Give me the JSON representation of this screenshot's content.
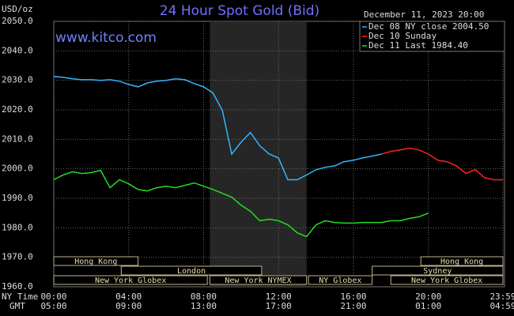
{
  "chart_data": {
    "type": "line",
    "title": "24 Hour Spot Gold (Bid)",
    "y_unit": "USD/oz",
    "timestamp": "December 11, 2023 20:00",
    "watermark": "www.kitco.com",
    "x_row_title": "NY Time",
    "x2_row_title": "GMT",
    "x": [
      0,
      0.5,
      1,
      1.5,
      2,
      2.5,
      3,
      3.5,
      4,
      4.5,
      5,
      5.5,
      6,
      6.5,
      7,
      7.5,
      8,
      8.5,
      9,
      9.5,
      10,
      10.5,
      11,
      11.5,
      12,
      12.5,
      13,
      13.5,
      14,
      14.5,
      15,
      15.5,
      16,
      16.5,
      17,
      17.5,
      18,
      18.5,
      19,
      19.5,
      20,
      20.5,
      21,
      21.5,
      22,
      22.5,
      23,
      23.5,
      23.983
    ],
    "series": [
      {
        "name": "Dec 08 NY close 2004.50",
        "color": "#33b5ff",
        "values": [
          2031.3,
          2031,
          2030.5,
          2030.2,
          2030.2,
          2030,
          2030.2,
          2029.7,
          2028.6,
          2027.8,
          2029.1,
          2029.7,
          2030,
          2030.5,
          2030.2,
          2028.9,
          2027.8,
          2025.7,
          2019.8,
          2005,
          2009,
          2012.3,
          2007.8,
          2005,
          2003.7,
          1996.3,
          1996.3,
          1997.9,
          1999.7,
          2000.5,
          2001,
          2002.4,
          2002.9,
          2003.7,
          2004.3,
          2005,
          null,
          null,
          null,
          null,
          null,
          null,
          null,
          null,
          null,
          null,
          null,
          null,
          null
        ]
      },
      {
        "name": "Dec 10 Sunday",
        "color": "#ff2020",
        "values": [
          null,
          null,
          null,
          null,
          null,
          null,
          null,
          null,
          null,
          null,
          null,
          null,
          null,
          null,
          null,
          null,
          null,
          null,
          null,
          null,
          null,
          null,
          null,
          null,
          null,
          null,
          null,
          null,
          null,
          null,
          null,
          null,
          null,
          null,
          null,
          2005,
          2005.9,
          2006.4,
          2007,
          2006.4,
          2005,
          2002.9,
          2002.4,
          2001,
          1998.4,
          1999.7,
          1997,
          1996.3,
          1996.3
        ]
      },
      {
        "name": "Dec 11 Last 1984.40",
        "color": "#22dd22",
        "values": [
          1996.3,
          1997.9,
          1999,
          1998.4,
          1998.7,
          1999.5,
          1993.6,
          1996.3,
          1994.9,
          1993,
          1992.5,
          1993.6,
          1994.1,
          1993.6,
          1994.4,
          1995.2,
          1994.1,
          1993,
          1991.7,
          1990.4,
          1987.7,
          1985.6,
          1982.4,
          1982.9,
          1982.4,
          1981,
          1978.3,
          1977,
          1981,
          1982.4,
          1981.8,
          1981.6,
          1981.6,
          1981.8,
          1981.8,
          1981.8,
          1982.4,
          1982.4,
          1983.2,
          1983.7,
          1985,
          null,
          null,
          null,
          null,
          null,
          null,
          null,
          null
        ]
      }
    ],
    "xlim": [
      0,
      23.983
    ],
    "xticks": [
      {
        "value": 0,
        "label": "00:00"
      },
      {
        "value": 4,
        "label": "04:00"
      },
      {
        "value": 8,
        "label": "08:00"
      },
      {
        "value": 12,
        "label": "12:00"
      },
      {
        "value": 16,
        "label": "16:00"
      },
      {
        "value": 20,
        "label": "20:00"
      },
      {
        "value": 23.983,
        "label": "23:59"
      }
    ],
    "x2_labels": [
      "05:00",
      "09:00",
      "13:00",
      "17:00",
      "21:00",
      "01:00",
      "04:59"
    ],
    "ylim": [
      1960,
      2050
    ],
    "yticks": [
      {
        "value": 1960,
        "label": "1960.0"
      },
      {
        "value": 1970,
        "label": "1970.0"
      },
      {
        "value": 1980,
        "label": "1980.0"
      },
      {
        "value": 1990,
        "label": "1990.0"
      },
      {
        "value": 2000,
        "label": "2000.0"
      },
      {
        "value": 2010,
        "label": "2010.0"
      },
      {
        "value": 2020,
        "label": "2020.0"
      },
      {
        "value": 2030,
        "label": "2030.0"
      },
      {
        "value": 2040,
        "label": "2040.0"
      },
      {
        "value": 2050,
        "label": "2050.0"
      }
    ],
    "grid": true,
    "legend": "top-right",
    "shaded_session": "New York NYMEX",
    "sessions": [
      [
        {
          "label": "Hong Kong",
          "start": 0,
          "end": 4.5
        },
        {
          "label": "Hong Kong",
          "start": 19.6,
          "end": 23.983
        }
      ],
      [
        {
          "label": "London",
          "start": 3.6,
          "end": 11.1
        },
        {
          "label": "Sydney",
          "start": 17,
          "end": 23.983
        }
      ],
      [
        {
          "label": "New York Globex",
          "start": 0,
          "end": 8.2
        },
        {
          "label": "New York NYMEX",
          "start": 8.33,
          "end": 13.5
        },
        {
          "label": "NY Globex",
          "start": 13.6,
          "end": 17
        },
        {
          "label": "New York Globex",
          "start": 18,
          "end": 23.983
        }
      ]
    ]
  }
}
